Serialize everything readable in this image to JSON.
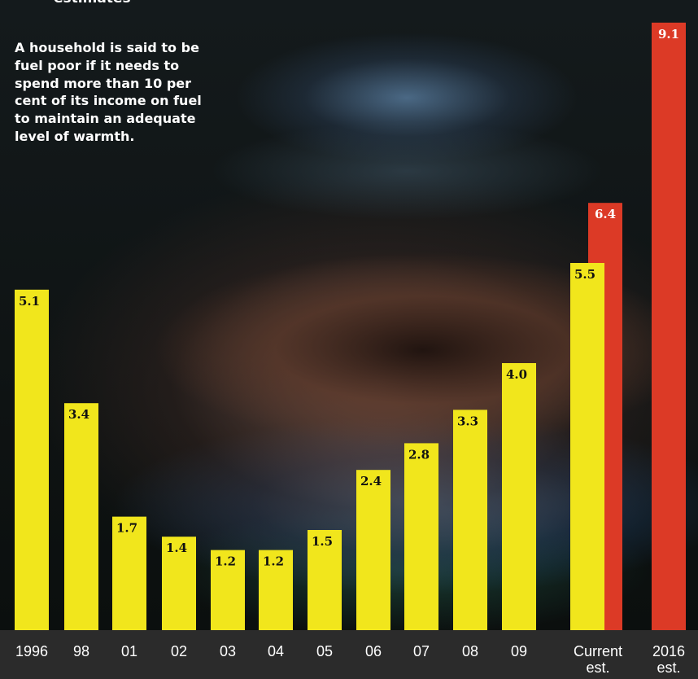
{
  "header": {
    "fragment": "estimates"
  },
  "intro": {
    "text": "A household is said to be fuel poor if it needs to spend more than 10 per cent of its income on fuel to maintain an adequate level of warmth."
  },
  "colors": {
    "actual": "#f1e61c",
    "estimate": "#dc3a26",
    "axis_band": "#2b2b2b",
    "tick_text": "#ffffff"
  },
  "chart_data": {
    "type": "bar",
    "title": "",
    "xlabel": "",
    "ylabel": "",
    "ylim": [
      0,
      9.5
    ],
    "grid": false,
    "legend": "none",
    "categories": [
      "1996",
      "98",
      "01",
      "02",
      "03",
      "04",
      "05",
      "06",
      "07",
      "08",
      "09",
      "Current est.",
      "2016 est."
    ],
    "series": [
      {
        "values": [
          5.1,
          3.4,
          1.7,
          1.4,
          1.2,
          1.2,
          1.5,
          2.4,
          2.8,
          3.3,
          4.0,
          5.5,
          null
        ]
      },
      {
        "values": [
          null,
          null,
          null,
          null,
          null,
          null,
          null,
          null,
          null,
          null,
          null,
          6.4,
          9.1
        ]
      }
    ]
  }
}
